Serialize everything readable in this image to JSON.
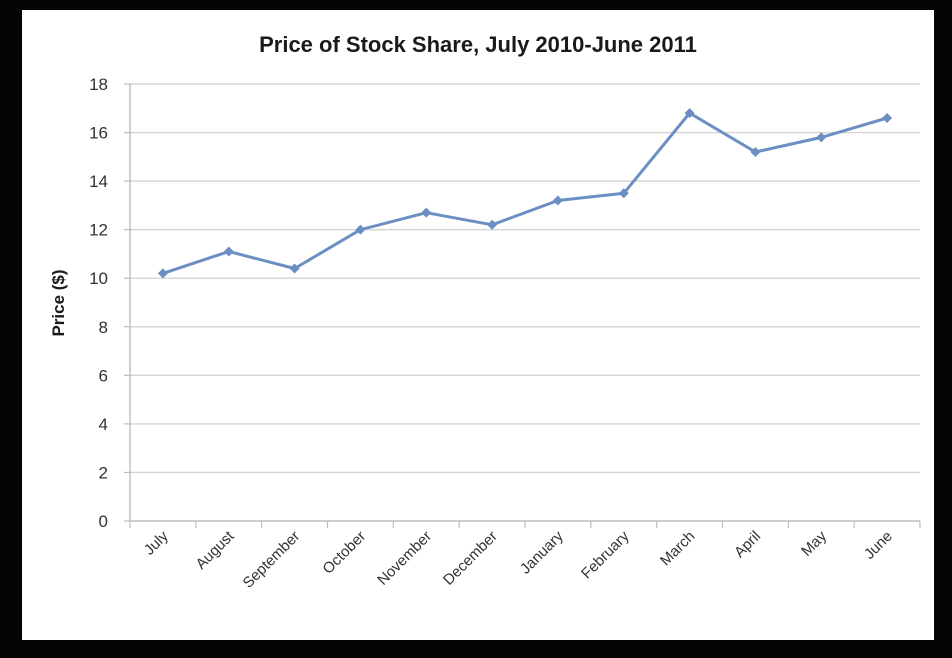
{
  "chart_data": {
    "type": "line",
    "title": "Price of Stock Share, July 2010-June 2011",
    "xlabel": "",
    "ylabel": "Price ($)",
    "ylim": [
      0,
      18
    ],
    "yticks": [
      0,
      2,
      4,
      6,
      8,
      10,
      12,
      14,
      16,
      18
    ],
    "grid": true,
    "legend": "none",
    "categories": [
      "July",
      "August",
      "September",
      "October",
      "November",
      "December",
      "January",
      "February",
      "March",
      "April",
      "May",
      "June"
    ],
    "series": [
      {
        "values": [
          10.2,
          11.1,
          10.4,
          12.0,
          12.7,
          12.2,
          13.2,
          13.5,
          16.8,
          15.2,
          15.8,
          16.6
        ],
        "color": "#6b8fc3"
      }
    ]
  }
}
